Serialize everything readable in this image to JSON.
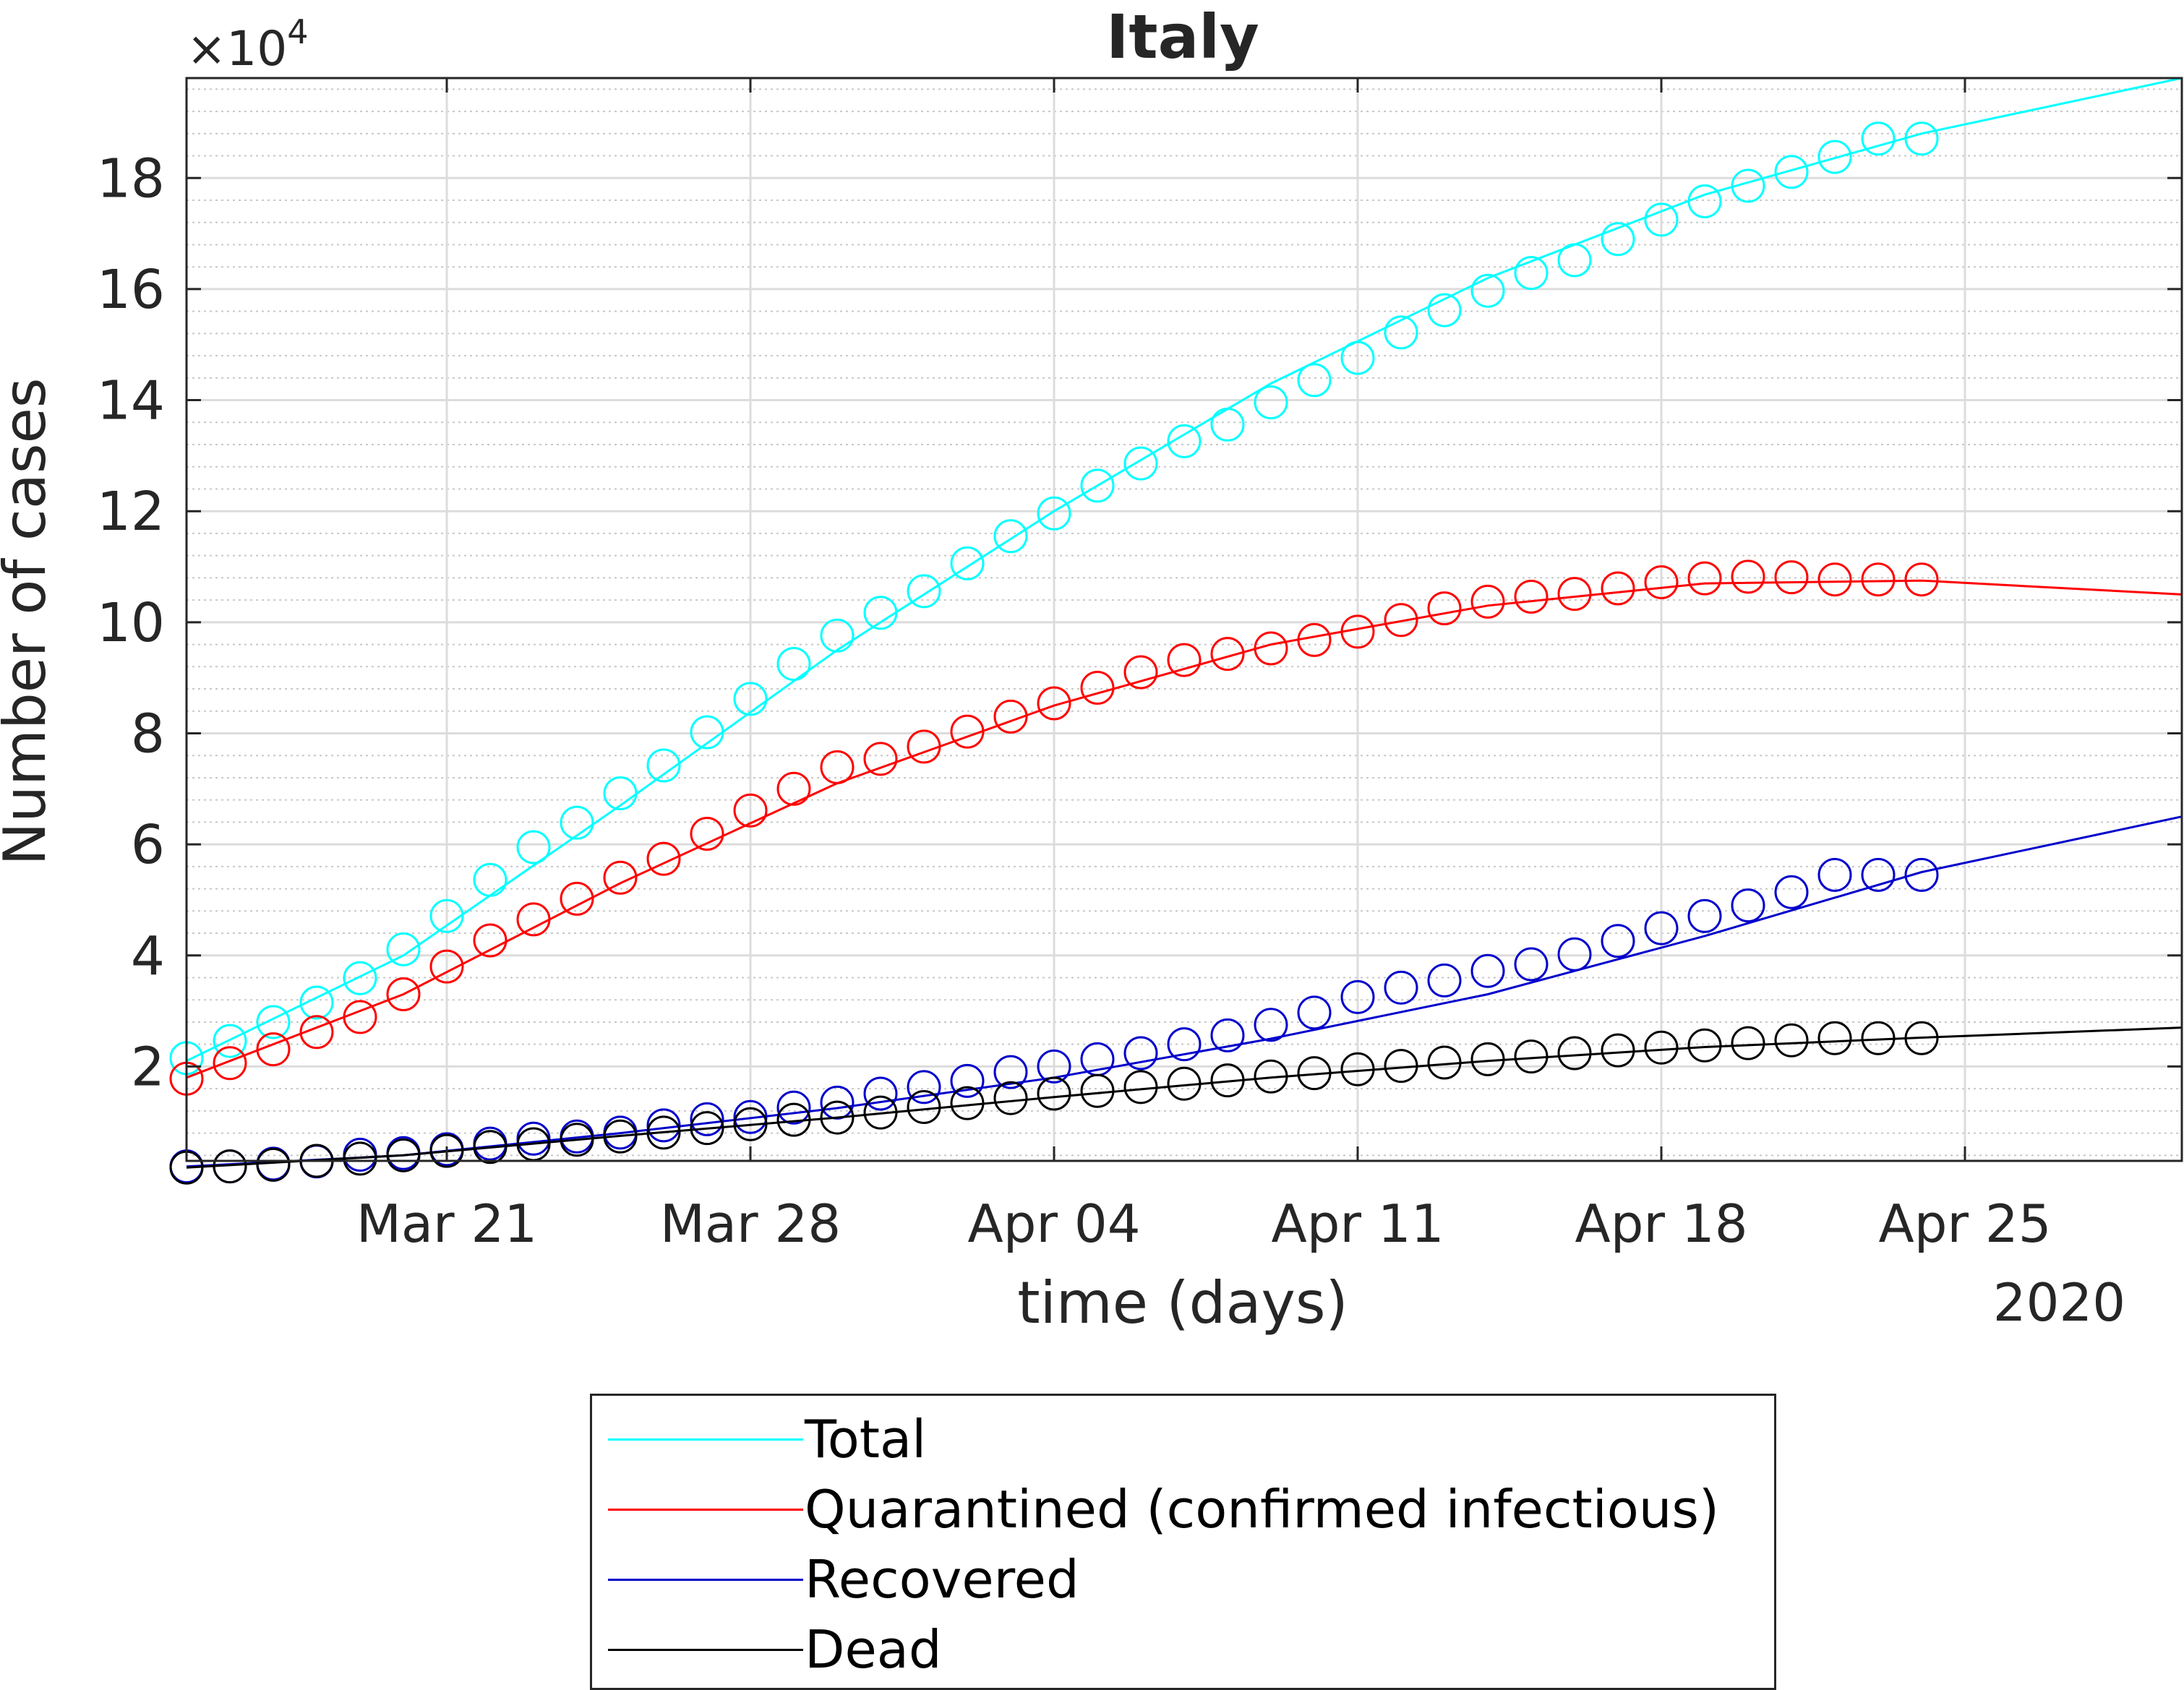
{
  "chart_data": {
    "type": "line",
    "title": "Italy",
    "xlabel": "time (days)",
    "ylabel": "Number of cases",
    "y_exponent_label": "×10",
    "y_exponent_power": "4",
    "x_year_label": "2020",
    "x_ticks": [
      "Mar 21",
      "Mar 28",
      "Apr 04",
      "Apr 11",
      "Apr 18",
      "Apr 25"
    ],
    "x_tick_dates": [
      "2020-03-21",
      "2020-03-28",
      "2020-04-04",
      "2020-04-11",
      "2020-04-18",
      "2020-04-25"
    ],
    "xlim": [
      "2020-03-15",
      "2020-04-30"
    ],
    "y_ticks": [
      2,
      4,
      6,
      8,
      10,
      12,
      14,
      16,
      18
    ],
    "ylim": [
      0.3,
      19.8
    ],
    "y_unit_note": "values in units of 10^4",
    "grid": "major and minor",
    "legend_position": "below plot",
    "observed_dates": [
      "2020-03-15",
      "2020-03-16",
      "2020-03-17",
      "2020-03-18",
      "2020-03-19",
      "2020-03-20",
      "2020-03-21",
      "2020-03-22",
      "2020-03-23",
      "2020-03-24",
      "2020-03-25",
      "2020-03-26",
      "2020-03-27",
      "2020-03-28",
      "2020-03-29",
      "2020-03-30",
      "2020-03-31",
      "2020-04-01",
      "2020-04-02",
      "2020-04-03",
      "2020-04-04",
      "2020-04-05",
      "2020-04-06",
      "2020-04-07",
      "2020-04-08",
      "2020-04-09",
      "2020-04-10",
      "2020-04-11",
      "2020-04-12",
      "2020-04-13",
      "2020-04-14",
      "2020-04-15",
      "2020-04-16",
      "2020-04-17",
      "2020-04-18",
      "2020-04-19",
      "2020-04-20",
      "2020-04-21",
      "2020-04-22",
      "2020-04-23",
      "2020-04-24"
    ],
    "series": [
      {
        "name": "Total",
        "color": "#00ffff",
        "observed": [
          2.15,
          2.46,
          2.8,
          3.15,
          3.59,
          4.11,
          4.71,
          5.36,
          5.95,
          6.39,
          6.92,
          7.42,
          8.02,
          8.62,
          9.25,
          9.76,
          10.17,
          10.56,
          11.06,
          11.55,
          11.96,
          12.46,
          12.86,
          13.26,
          13.56,
          13.96,
          14.36,
          14.76,
          15.22,
          15.62,
          15.97,
          16.29,
          16.52,
          16.9,
          17.25,
          17.58,
          17.86,
          18.11,
          18.38,
          18.71,
          18.71
        ],
        "fit_dates": [
          "2020-03-15",
          "2020-03-20",
          "2020-03-25",
          "2020-03-30",
          "2020-04-04",
          "2020-04-09",
          "2020-04-14",
          "2020-04-19",
          "2020-04-24",
          "2020-04-30"
        ],
        "fit": [
          2.1,
          4.0,
          6.7,
          9.5,
          12.0,
          14.3,
          16.2,
          17.7,
          18.8,
          19.8
        ]
      },
      {
        "name": "Quarantined (confirmed infectious)",
        "color": "#ff0000",
        "observed": [
          1.78,
          2.06,
          2.31,
          2.62,
          2.89,
          3.3,
          3.8,
          4.27,
          4.65,
          5.02,
          5.4,
          5.74,
          6.19,
          6.61,
          7.0,
          7.39,
          7.54,
          7.76,
          8.03,
          8.3,
          8.54,
          8.82,
          9.1,
          9.32,
          9.43,
          9.53,
          9.68,
          9.83,
          10.04,
          10.25,
          10.37,
          10.46,
          10.51,
          10.61,
          10.72,
          10.79,
          10.82,
          10.81,
          10.77,
          10.77,
          10.77
        ],
        "fit_dates": [
          "2020-03-15",
          "2020-03-20",
          "2020-03-25",
          "2020-03-30",
          "2020-04-04",
          "2020-04-09",
          "2020-04-14",
          "2020-04-19",
          "2020-04-24",
          "2020-04-30"
        ],
        "fit": [
          1.8,
          3.3,
          5.3,
          7.1,
          8.5,
          9.6,
          10.3,
          10.7,
          10.75,
          10.5
        ]
      },
      {
        "name": "Recovered",
        "color": "#0000cc",
        "observed": [
          0.2,
          0.2,
          0.25,
          0.29,
          0.41,
          0.44,
          0.51,
          0.61,
          0.7,
          0.74,
          0.81,
          0.94,
          1.05,
          1.09,
          1.26,
          1.35,
          1.51,
          1.63,
          1.74,
          1.9,
          2.0,
          2.13,
          2.24,
          2.4,
          2.56,
          2.75,
          2.97,
          3.25,
          3.42,
          3.55,
          3.72,
          3.84,
          4.02,
          4.26,
          4.49,
          4.71,
          4.9,
          5.14,
          5.45,
          5.45,
          5.45
        ],
        "fit_dates": [
          "2020-03-15",
          "2020-03-20",
          "2020-03-25",
          "2020-03-30",
          "2020-04-04",
          "2020-04-09",
          "2020-04-14",
          "2020-04-19",
          "2020-04-24",
          "2020-04-30"
        ],
        "fit": [
          0.2,
          0.4,
          0.8,
          1.25,
          1.8,
          2.5,
          3.3,
          4.35,
          5.5,
          6.5
        ]
      },
      {
        "name": "Dead",
        "color": "#000000",
        "observed": [
          0.18,
          0.2,
          0.23,
          0.3,
          0.34,
          0.4,
          0.48,
          0.55,
          0.6,
          0.68,
          0.74,
          0.81,
          0.89,
          0.96,
          1.04,
          1.08,
          1.17,
          1.27,
          1.34,
          1.43,
          1.51,
          1.56,
          1.63,
          1.69,
          1.75,
          1.82,
          1.88,
          1.95,
          2.01,
          2.07,
          2.13,
          2.18,
          2.24,
          2.29,
          2.34,
          2.38,
          2.42,
          2.47,
          2.51,
          2.51,
          2.51
        ],
        "fit_dates": [
          "2020-03-15",
          "2020-03-20",
          "2020-03-25",
          "2020-03-30",
          "2020-04-04",
          "2020-04-09",
          "2020-04-14",
          "2020-04-19",
          "2020-04-24",
          "2020-04-30"
        ],
        "fit": [
          0.18,
          0.4,
          0.75,
          1.08,
          1.45,
          1.8,
          2.1,
          2.35,
          2.52,
          2.7
        ]
      }
    ]
  }
}
